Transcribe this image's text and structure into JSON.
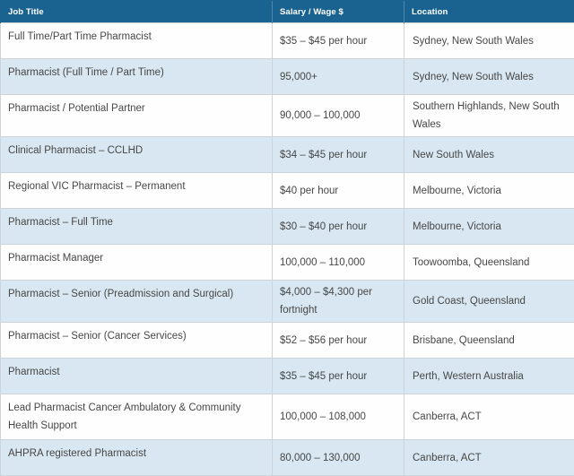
{
  "table": {
    "columns": [
      {
        "label": "Job Title"
      },
      {
        "label": "Salary / Wage $"
      },
      {
        "label": "Location"
      }
    ],
    "rows": [
      {
        "job_title": "Full Time/Part Time Pharmacist",
        "salary": "$35 – $45 per hour",
        "location": "Sydney, New South Wales"
      },
      {
        "job_title": "Pharmacist (Full Time / Part Time)",
        "salary": "95,000+",
        "location": "Sydney, New South Wales"
      },
      {
        "job_title": "Pharmacist / Potential Partner",
        "salary": "90,000 – 100,000",
        "location": "Southern Highlands, New South Wales"
      },
      {
        "job_title": "Clinical Pharmacist – CCLHD",
        "salary": "$34 – $45 per hour",
        "location": "New South Wales"
      },
      {
        "job_title": "Regional VIC Pharmacist – Permanent",
        "salary": "$40 per hour",
        "location": "Melbourne, Victoria"
      },
      {
        "job_title": "Pharmacist – Full Time",
        "salary": "$30 – $40 per hour",
        "location": "Melbourne, Victoria"
      },
      {
        "job_title": "Pharmacist Manager",
        "salary": "100,000 – 110,000",
        "location": "Toowoomba, Queensland"
      },
      {
        "job_title": "Pharmacist – Senior (Preadmission and Surgical)",
        "salary": "$4,000 – $4,300 per fortnight",
        "location": "Gold Coast, Queensland"
      },
      {
        "job_title": "Pharmacist – Senior (Cancer Services)",
        "salary": "$52 – $56 per hour",
        "location": "Brisbane, Queensland"
      },
      {
        "job_title": "Pharmacist",
        "salary": "$35 – $45 per hour",
        "location": "Perth, Western Australia"
      },
      {
        "job_title": "Lead Pharmacist Cancer Ambulatory & Community Health Support",
        "salary": "100,000 – 108,000",
        "location": "Canberra, ACT"
      },
      {
        "job_title": "AHPRA registered Pharmacist",
        "salary": "80,000 – 130,000",
        "location": "Canberra, ACT"
      }
    ]
  },
  "colors": {
    "header_background": "#1a6391",
    "header_text": "#ffffff",
    "header_divider": "#4d88ad",
    "row_background": "#fefefe",
    "row_alt_background": "#d8e7f1",
    "cell_border": "#ccd4d9",
    "body_text": "#474747"
  },
  "chart_data": {
    "type": "table",
    "columns": [
      "Job Title",
      "Salary / Wage $",
      "Location"
    ],
    "rows": [
      [
        "Full Time/Part Time Pharmacist",
        "$35 – $45 per hour",
        "Sydney, New South Wales"
      ],
      [
        "Pharmacist (Full Time / Part Time)",
        "95,000+",
        "Sydney, New South Wales"
      ],
      [
        "Pharmacist / Potential Partner",
        "90,000 – 100,000",
        "Southern Highlands, New South Wales"
      ],
      [
        "Clinical Pharmacist – CCLHD",
        "$34 – $45 per hour",
        "New South Wales"
      ],
      [
        "Regional VIC Pharmacist – Permanent",
        "$40 per hour",
        "Melbourne, Victoria"
      ],
      [
        "Pharmacist – Full Time",
        "$30 – $40 per hour",
        "Melbourne, Victoria"
      ],
      [
        "Pharmacist Manager",
        "100,000 – 110,000",
        "Toowoomba, Queensland"
      ],
      [
        "Pharmacist – Senior (Preadmission and Surgical)",
        "$4,000 – $4,300 per fortnight",
        "Gold Coast, Queensland"
      ],
      [
        "Pharmacist – Senior (Cancer Services)",
        "$52 – $56 per hour",
        "Brisbane, Queensland"
      ],
      [
        "Pharmacist",
        "$35 – $45 per hour",
        "Perth, Western Australia"
      ],
      [
        "Lead Pharmacist Cancer Ambulatory & Community Health Support",
        "100,000 – 108,000",
        "Canberra, ACT"
      ],
      [
        "AHPRA registered Pharmacist",
        "80,000 – 130,000",
        "Canberra, ACT"
      ]
    ]
  }
}
